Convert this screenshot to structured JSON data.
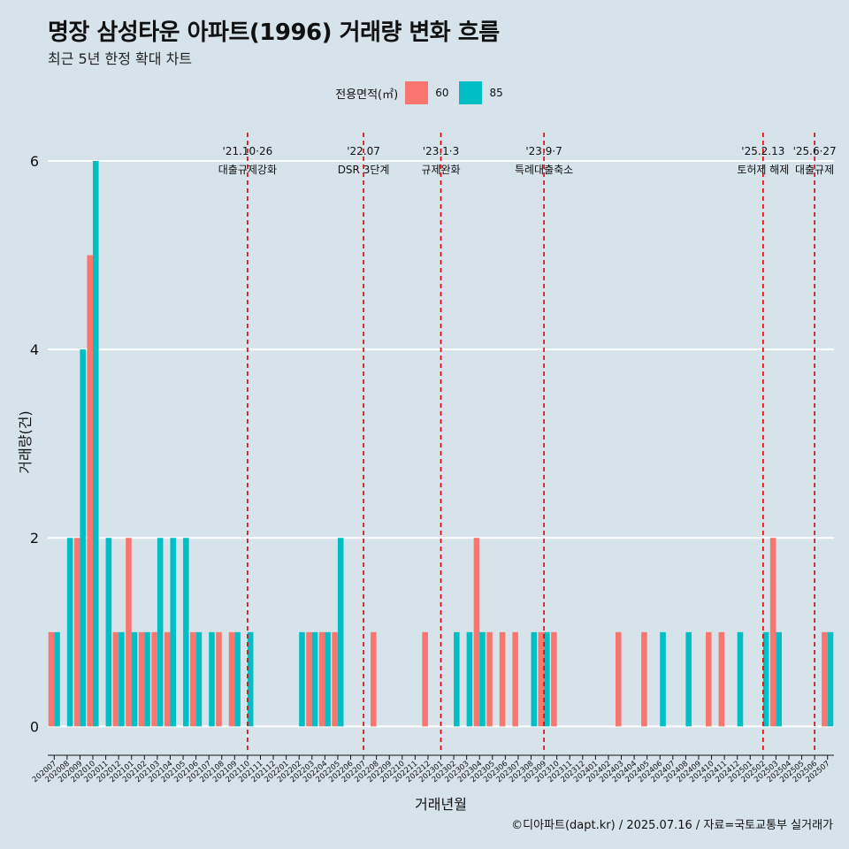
{
  "title": "명장 삼성타운 아파트(1996) 거래량 변화 흐름",
  "subtitle": "최근 5년 한정 확대 차트",
  "caption": "©디아파트(dapt.kr) / 2025.07.16 / 자료=국토교통부 실거래가",
  "colors": {
    "background": "#d6e3ea",
    "s60": "#f8766d",
    "s85": "#00bfc4",
    "event": "#e00000",
    "grid": "#ffffff"
  },
  "chart_data": {
    "type": "bar",
    "xlabel": "거래년월",
    "ylabel": "거래량(건)",
    "ylim": [
      -0.25,
      6.3
    ],
    "yticks": [
      0,
      2,
      4,
      6
    ],
    "legend": {
      "title": "전용면적(㎡)",
      "position": "top"
    },
    "categories": [
      "202007",
      "202008",
      "202009",
      "202010",
      "202011",
      "202012",
      "202101",
      "202102",
      "202103",
      "202104",
      "202105",
      "202106",
      "202107",
      "202108",
      "202109",
      "202110",
      "202111",
      "202112",
      "202201",
      "202202",
      "202203",
      "202204",
      "202205",
      "202206",
      "202207",
      "202208",
      "202209",
      "202210",
      "202211",
      "202212",
      "202301",
      "202302",
      "202303",
      "202304",
      "202305",
      "202306",
      "202307",
      "202308",
      "202309",
      "202310",
      "202311",
      "202312",
      "202401",
      "202402",
      "202403",
      "202404",
      "202405",
      "202406",
      "202407",
      "202408",
      "202409",
      "202410",
      "202411",
      "202412",
      "202501",
      "202502",
      "202503",
      "202504",
      "202505",
      "202506",
      "202507"
    ],
    "series": [
      {
        "name": "60",
        "values": [
          1,
          0,
          2,
          5,
          0,
          1,
          2,
          1,
          1,
          1,
          0,
          1,
          0,
          1,
          1,
          0,
          0,
          0,
          0,
          0,
          1,
          1,
          1,
          0,
          0,
          1,
          0,
          0,
          0,
          1,
          0,
          0,
          0,
          2,
          1,
          1,
          1,
          0,
          1,
          1,
          0,
          0,
          0,
          0,
          1,
          0,
          1,
          0,
          0,
          0,
          0,
          1,
          1,
          0,
          0,
          0,
          2,
          0,
          0,
          0,
          1
        ]
      },
      {
        "name": "85",
        "values": [
          1,
          2,
          4,
          6,
          2,
          1,
          1,
          1,
          2,
          2,
          2,
          1,
          1,
          0,
          1,
          1,
          0,
          0,
          0,
          1,
          1,
          1,
          2,
          0,
          0,
          0,
          0,
          0,
          0,
          0,
          0,
          1,
          1,
          1,
          0,
          0,
          0,
          1,
          1,
          0,
          0,
          0,
          0,
          0,
          0,
          0,
          0,
          1,
          0,
          1,
          0,
          0,
          0,
          1,
          0,
          1,
          1,
          0,
          0,
          0,
          1
        ]
      }
    ],
    "events": [
      {
        "date": "202110",
        "line1": "'21.10·26",
        "line2": "대출규제강화"
      },
      {
        "date": "202207",
        "line1": "'22.07",
        "line2": "DSR 3단계"
      },
      {
        "date": "202301",
        "line1": "'23.1·3",
        "line2": "규제완화"
      },
      {
        "date": "202309",
        "line1": "'23.9·7",
        "line2": "특례대출축소"
      },
      {
        "date": "202502",
        "line1": "'25.2.13",
        "line2": "토허제 해제"
      },
      {
        "date": "202506",
        "line1": "'25.6·27",
        "line2": "대출규제"
      }
    ]
  }
}
